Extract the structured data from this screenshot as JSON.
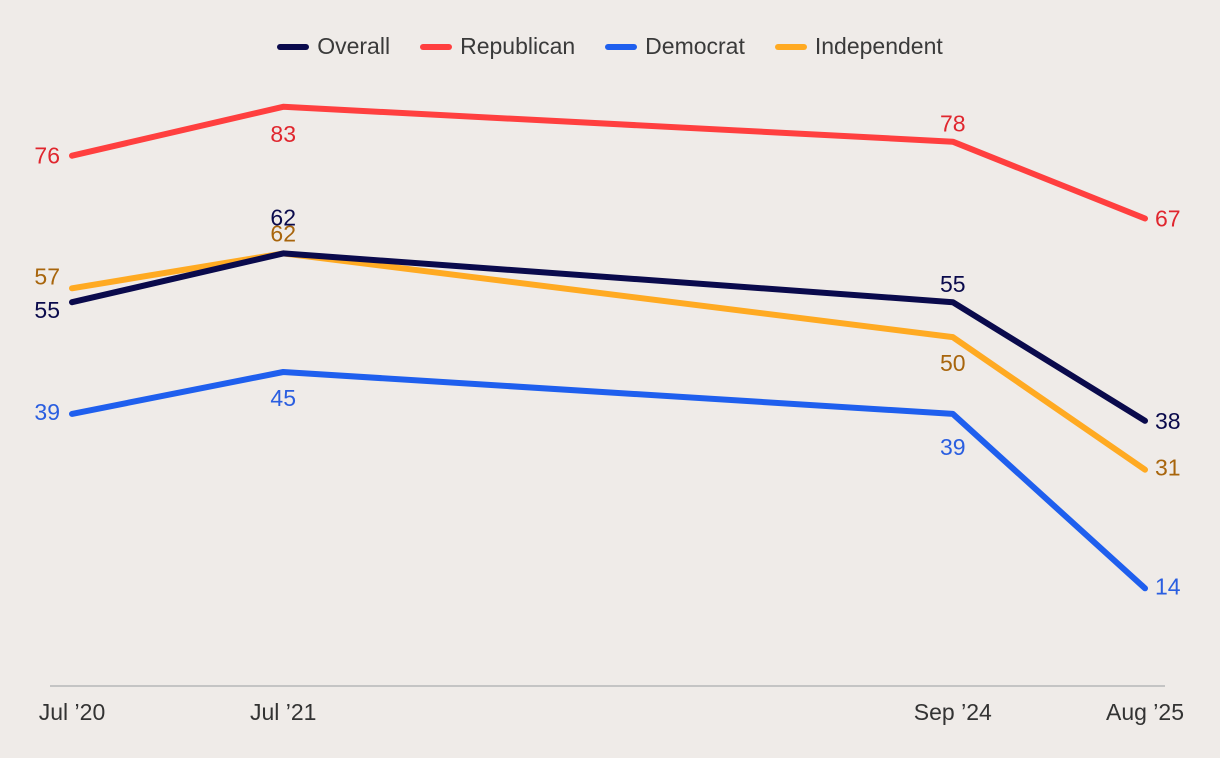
{
  "chart_data": {
    "type": "line",
    "title": "",
    "xlabel": "",
    "ylabel": "",
    "x": [
      "Jul ’20",
      "Jul ’21",
      "Sep ’24",
      "Aug ’25"
    ],
    "x_time": [
      2020.54,
      2021.54,
      2024.71,
      2025.62
    ],
    "ylim": [
      0,
      90
    ],
    "grid": false,
    "legend_position": "top-center",
    "series": [
      {
        "name": "Overall",
        "color": "#0a0a4c",
        "label_color": "#0a0a4c",
        "values": [
          55,
          62,
          55,
          38
        ]
      },
      {
        "name": "Republican",
        "color": "#ff3f3f",
        "label_color": "#e0262e",
        "values": [
          76,
          83,
          78,
          67
        ]
      },
      {
        "name": "Democrat",
        "color": "#1f5fee",
        "label_color": "#2a5ee0",
        "values": [
          39,
          45,
          39,
          14
        ]
      },
      {
        "name": "Independent",
        "color": "#ffaa22",
        "label_color": "#a8650c",
        "values": [
          57,
          62,
          50,
          31
        ]
      }
    ]
  }
}
